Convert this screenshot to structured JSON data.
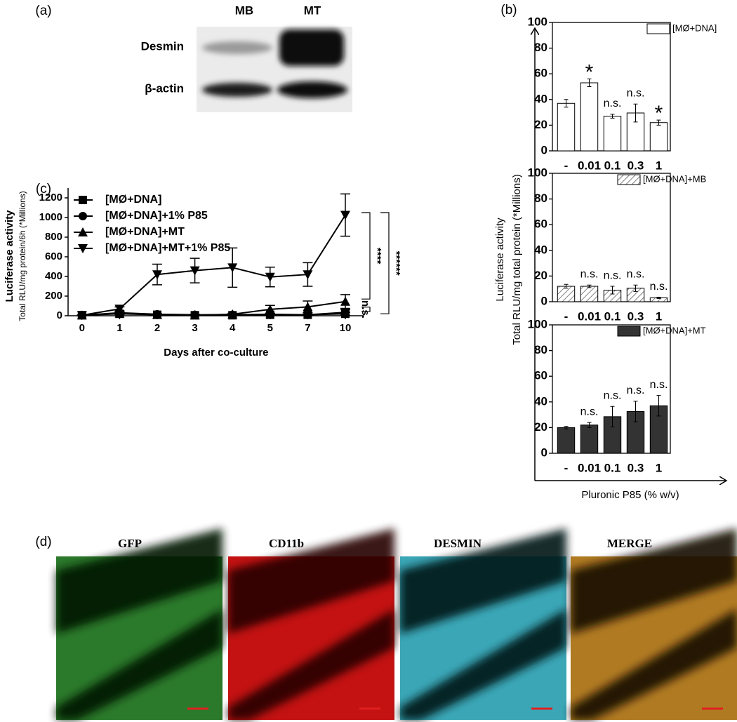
{
  "figure": {
    "panel_labels": [
      "(a)",
      "(b)",
      "(c)",
      "(d)"
    ]
  },
  "blot": {
    "lanes": [
      "MB",
      "MT"
    ],
    "proteins": [
      "Desmin",
      "β-actin"
    ]
  },
  "images": [
    "GFP",
    "CD11b",
    "DESMIN",
    "MERGE"
  ],
  "chart_data": [
    {
      "type": "line",
      "categories": [
        "0",
        "1",
        "2",
        "3",
        "4",
        "5",
        "7",
        "10"
      ],
      "xlabel": "Days after co-culture",
      "ylabel": [
        "Luciferase activity",
        "Total RLU/mg protein/6h (*Millions)"
      ],
      "ylim": [
        0,
        1300
      ],
      "yticks": [
        0,
        200,
        400,
        600,
        800,
        1000,
        1200
      ],
      "series": [
        {
          "name": "[MØ+DNA]",
          "color": "#000000",
          "marker": "square",
          "values": [
            5,
            20,
            10,
            5,
            5,
            10,
            10,
            20
          ],
          "errors": [
            2,
            8,
            5,
            3,
            3,
            5,
            5,
            15
          ]
        },
        {
          "name": "[MØ+DNA]+1% P85",
          "color": "#000000",
          "marker": "circle",
          "values": [
            5,
            30,
            15,
            10,
            10,
            15,
            10,
            35
          ],
          "errors": [
            2,
            10,
            5,
            4,
            4,
            8,
            6,
            30
          ]
        },
        {
          "name": "[MØ+DNA]+MT",
          "color": "#000000",
          "marker": "triangle",
          "values": [
            5,
            25,
            10,
            5,
            15,
            65,
            90,
            145
          ],
          "errors": [
            2,
            10,
            5,
            5,
            10,
            40,
            60,
            70
          ]
        },
        {
          "name": "[MØ+DNA]+MT+1% P85",
          "color": "#000000",
          "marker": "triangle-down",
          "values": [
            5,
            70,
            420,
            460,
            490,
            395,
            420,
            1025
          ],
          "errors": [
            2,
            20,
            105,
            125,
            200,
            100,
            120,
            215
          ]
        }
      ],
      "annotations": [
        "****",
        "******",
        "n.s."
      ]
    },
    {
      "type": "bar",
      "ylabel": [
        "Luciferase activity",
        "Total RLU/mg total protein (*Millions)"
      ],
      "categories": [
        "-",
        "0.01",
        "0.1",
        "0.3",
        "1"
      ],
      "ylim": [
        0,
        100
      ],
      "yticks": [
        0,
        20,
        40,
        60,
        80,
        100
      ],
      "series": [
        {
          "name": "[MØ+DNA]",
          "color": "#ffffff",
          "values": [
            37,
            53,
            27,
            29.5,
            22
          ],
          "errors": [
            3,
            3,
            1.5,
            7,
            2
          ]
        }
      ],
      "annotations": [
        null,
        "*",
        "n.s.",
        "n.s.",
        "*"
      ]
    },
    {
      "type": "bar",
      "categories": [
        "-",
        "0.01",
        "0.1",
        "0.3",
        "1"
      ],
      "ylim": [
        0,
        100
      ],
      "yticks": [
        0,
        20,
        40,
        60,
        80,
        100
      ],
      "series": [
        {
          "name": "[MØ+DNA]+MB",
          "color": "#ffffff",
          "hatch": true,
          "values": [
            12,
            12,
            9,
            10.5,
            3
          ],
          "errors": [
            1.5,
            1,
            3,
            2.5,
            0.5
          ]
        }
      ],
      "annotations": [
        null,
        "n.s.",
        "n.s.",
        "n.s.",
        "n.s."
      ]
    },
    {
      "type": "bar",
      "xlabel": "Pluronic P85 (% w/v)",
      "categories": [
        "-",
        "0.01",
        "0.1",
        "0.3",
        "1"
      ],
      "ylim": [
        0,
        100
      ],
      "yticks": [
        0,
        20,
        40,
        60,
        80,
        100
      ],
      "series": [
        {
          "name": "[MØ+DNA]+MT",
          "color": "#333333",
          "values": [
            20,
            22,
            28.5,
            32.5,
            37
          ],
          "errors": [
            1,
            2,
            8,
            8,
            8
          ]
        }
      ],
      "annotations": [
        null,
        "n.s.",
        "n.s.",
        "n.s.",
        "n.s."
      ]
    }
  ]
}
